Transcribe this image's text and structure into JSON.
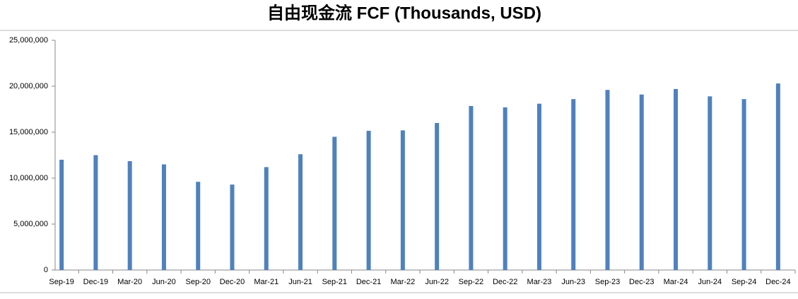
{
  "chart_data": {
    "type": "bar",
    "title": "自由现金流 FCF (Thousands, USD)",
    "categories": [
      "Sep-19",
      "Dec-19",
      "Mar-20",
      "Jun-20",
      "Sep-20",
      "Dec-20",
      "Mar-21",
      "Jun-21",
      "Sep-21",
      "Dec-21",
      "Mar-22",
      "Jun-22",
      "Sep-22",
      "Dec-22",
      "Mar-23",
      "Jun-23",
      "Sep-23",
      "Dec-23",
      "Mar-24",
      "Jun-24",
      "Sep-24",
      "Dec-24"
    ],
    "values": [
      12000000,
      12500000,
      11850000,
      11500000,
      9600000,
      9300000,
      11200000,
      12600000,
      14500000,
      15150000,
      15200000,
      16000000,
      17850000,
      17700000,
      18100000,
      18600000,
      19600000,
      19100000,
      19700000,
      18900000,
      18600000,
      20300000
    ],
    "color": "#4f81bd",
    "ylim": [
      0,
      25000000
    ],
    "yticks": [
      0,
      {
        "value": 5000000,
        "label": "5,000,000"
      },
      {
        "value": 10000000,
        "label": "10,000,000"
      },
      {
        "value": 15000000,
        "label": "15,000,000"
      },
      {
        "value": 20000000,
        "label": "20,000,000"
      },
      {
        "value": 25000000,
        "label": "25,000,000"
      }
    ],
    "grid": false
  }
}
